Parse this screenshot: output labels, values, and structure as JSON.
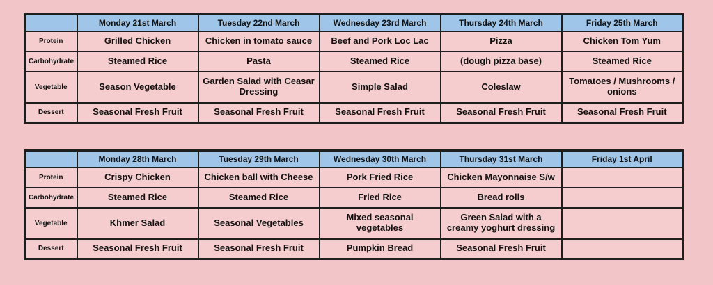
{
  "colors": {
    "page_bg": "#f2c6c8",
    "cell_bg": "#f6cdce",
    "header_bg": "#9fc5e8",
    "border": "#1e1e1e",
    "text": "#111111"
  },
  "tables": [
    {
      "columns": [
        "",
        "Monday 21st March",
        "Tuesday 22nd March",
        "Wednesday 23rd March",
        "Thursday 24th March",
        "Friday 25th March"
      ],
      "rows": [
        {
          "label": "Protein",
          "cells": [
            "Grilled Chicken",
            "Chicken in tomato sauce",
            "Beef and Pork Loc Lac",
            "Pizza",
            "Chicken Tom Yum"
          ]
        },
        {
          "label": "Carbohydrate",
          "cells": [
            "Steamed Rice",
            "Pasta",
            "Steamed Rice",
            "(dough pizza base)",
            "Steamed Rice"
          ]
        },
        {
          "label": "Vegetable",
          "cells": [
            "Season Vegetable",
            "Garden Salad with Ceasar Dressing",
            "Simple Salad",
            "Coleslaw",
            "Tomatoes / Mushrooms / onions"
          ]
        },
        {
          "label": "Dessert",
          "cells": [
            "Seasonal Fresh Fruit",
            "Seasonal Fresh Fruit",
            "Seasonal Fresh Fruit",
            "Seasonal Fresh Fruit",
            "Seasonal Fresh Fruit"
          ]
        }
      ]
    },
    {
      "columns": [
        "",
        "Monday 28th March",
        "Tuesday 29th March",
        "Wednesday 30th March",
        "Thursday 31st March",
        "Friday 1st April"
      ],
      "rows": [
        {
          "label": "Protein",
          "cells": [
            "Crispy Chicken",
            "Chicken ball with Cheese",
            "Pork Fried Rice",
            "Chicken Mayonnaise S/w",
            ""
          ]
        },
        {
          "label": "Carbohydrate",
          "cells": [
            "Steamed Rice",
            "Steamed Rice",
            "Fried Rice",
            "Bread rolls",
            ""
          ]
        },
        {
          "label": "Vegetable",
          "cells": [
            "Khmer Salad",
            "Seasonal Vegetables",
            "Mixed seasonal vegetables",
            "Green Salad with a creamy yoghurt dressing",
            ""
          ]
        },
        {
          "label": "Dessert",
          "cells": [
            "Seasonal Fresh Fruit",
            "Seasonal Fresh Fruit",
            "Pumpkin Bread",
            "Seasonal Fresh Fruit",
            ""
          ]
        }
      ]
    }
  ]
}
